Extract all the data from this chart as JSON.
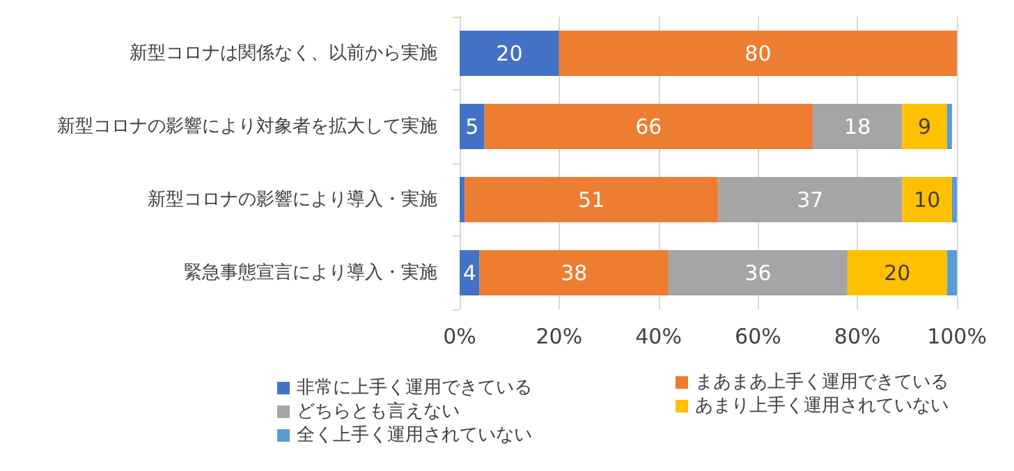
{
  "chart_data": {
    "type": "bar",
    "orientation": "horizontal",
    "stacked": true,
    "categories": [
      "新型コロナは関係なく、以前から実施",
      "新型コロナの影響により対象者を拡大して実施",
      "新型コロナの影響により導入・実施",
      "緊急事態宣言により導入・実施"
    ],
    "series": [
      {
        "name": "非常に上手く運用できている",
        "color": "#4472c4",
        "values": [
          20,
          5,
          1,
          4
        ],
        "value_labels": [
          "20",
          "5",
          null,
          "4"
        ]
      },
      {
        "name": "まあまあ上手く運用できている",
        "color": "#ed7d31",
        "values": [
          80,
          66,
          51,
          38
        ],
        "value_labels": [
          "80",
          "66",
          "51",
          "38"
        ]
      },
      {
        "name": "どちらとも言えない",
        "color": "#a5a5a5",
        "values": [
          0,
          18,
          37,
          36
        ],
        "value_labels": [
          null,
          "18",
          "37",
          "36"
        ]
      },
      {
        "name": "あまり上手く運用されていない",
        "color": "#ffc000",
        "values": [
          0,
          9,
          10,
          20
        ],
        "value_labels": [
          null,
          "9",
          "10",
          "20"
        ]
      },
      {
        "name": "全く上手く運用されていない",
        "color": "#5b9bd5",
        "values": [
          0,
          1,
          1,
          2
        ],
        "value_labels": [
          null,
          null,
          null,
          null
        ]
      }
    ],
    "xlim": [
      0,
      100
    ],
    "xticks": [
      {
        "value": 0,
        "label": "0%"
      },
      {
        "value": 20,
        "label": "20%"
      },
      {
        "value": 40,
        "label": "40%"
      },
      {
        "value": 60,
        "label": "60%"
      },
      {
        "value": 80,
        "label": "80%"
      },
      {
        "value": 100,
        "label": "100%"
      }
    ],
    "grid": "x",
    "legend": "bottom"
  }
}
